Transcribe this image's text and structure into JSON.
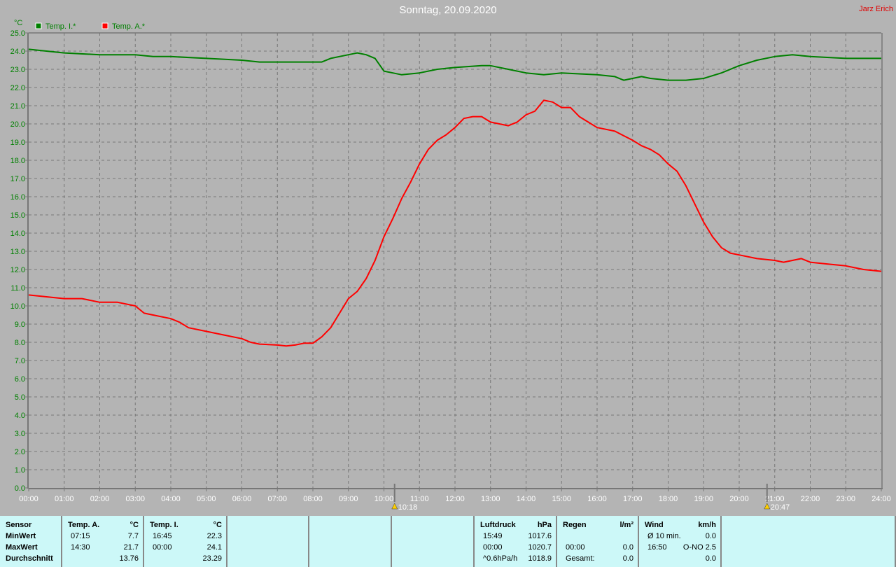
{
  "title": "Sonntag, 20.09.2020",
  "author": "Jarz Erich",
  "chart_data": {
    "type": "line",
    "ylabel": "°C",
    "ylim": [
      0,
      25
    ],
    "xlim": [
      "00:00",
      "24:00"
    ],
    "grid": true,
    "legend": "top-left",
    "x_ticks": [
      "00:00",
      "01:00",
      "02:00",
      "03:00",
      "04:00",
      "05:00",
      "06:00",
      "07:00",
      "08:00",
      "09:00",
      "10:00",
      "11:00",
      "12:00",
      "13:00",
      "14:00",
      "15:00",
      "16:00",
      "17:00",
      "18:00",
      "19:00",
      "20:00",
      "21:00",
      "22:00",
      "23:00",
      "24:00"
    ],
    "y_ticks": [
      "0.0",
      "1.0",
      "2.0",
      "3.0",
      "4.0",
      "5.0",
      "6.0",
      "7.0",
      "8.0",
      "9.0",
      "10.0",
      "11.0",
      "12.0",
      "13.0",
      "14.0",
      "15.0",
      "16.0",
      "17.0",
      "18.0",
      "19.0",
      "20.0",
      "21.0",
      "22.0",
      "23.0",
      "24.0",
      "25.0"
    ],
    "markers": [
      {
        "label": "10:18",
        "icon": "sunrise-icon",
        "time": "10:18"
      },
      {
        "label": "20:47",
        "icon": "sunset-icon",
        "time": "20:47"
      }
    ],
    "series": [
      {
        "name": "Temp. I.*",
        "color": "#008000",
        "points": [
          [
            "00:00",
            24.1
          ],
          [
            "00:30",
            24.0
          ],
          [
            "01:00",
            23.9
          ],
          [
            "02:00",
            23.8
          ],
          [
            "03:00",
            23.8
          ],
          [
            "03:30",
            23.7
          ],
          [
            "04:00",
            23.7
          ],
          [
            "05:00",
            23.6
          ],
          [
            "06:00",
            23.5
          ],
          [
            "06:30",
            23.4
          ],
          [
            "07:00",
            23.4
          ],
          [
            "08:15",
            23.4
          ],
          [
            "08:30",
            23.6
          ],
          [
            "09:00",
            23.8
          ],
          [
            "09:15",
            23.9
          ],
          [
            "09:30",
            23.8
          ],
          [
            "09:45",
            23.6
          ],
          [
            "10:00",
            22.9
          ],
          [
            "10:15",
            22.8
          ],
          [
            "10:30",
            22.7
          ],
          [
            "11:00",
            22.8
          ],
          [
            "11:30",
            23.0
          ],
          [
            "12:00",
            23.1
          ],
          [
            "12:45",
            23.2
          ],
          [
            "13:00",
            23.2
          ],
          [
            "13:30",
            23.0
          ],
          [
            "14:00",
            22.8
          ],
          [
            "14:30",
            22.7
          ],
          [
            "15:00",
            22.8
          ],
          [
            "16:00",
            22.7
          ],
          [
            "16:30",
            22.6
          ],
          [
            "16:45",
            22.4
          ],
          [
            "17:00",
            22.5
          ],
          [
            "17:15",
            22.6
          ],
          [
            "17:30",
            22.5
          ],
          [
            "18:00",
            22.4
          ],
          [
            "18:30",
            22.4
          ],
          [
            "19:00",
            22.5
          ],
          [
            "19:30",
            22.8
          ],
          [
            "20:00",
            23.2
          ],
          [
            "20:30",
            23.5
          ],
          [
            "21:00",
            23.7
          ],
          [
            "21:30",
            23.8
          ],
          [
            "22:00",
            23.7
          ],
          [
            "23:00",
            23.6
          ],
          [
            "24:00",
            23.6
          ]
        ]
      },
      {
        "name": "Temp. A.*",
        "color": "#ff0000",
        "points": [
          [
            "00:00",
            10.6
          ],
          [
            "00:30",
            10.5
          ],
          [
            "01:00",
            10.4
          ],
          [
            "01:30",
            10.4
          ],
          [
            "02:00",
            10.2
          ],
          [
            "02:30",
            10.2
          ],
          [
            "03:00",
            10.0
          ],
          [
            "03:15",
            9.6
          ],
          [
            "03:30",
            9.5
          ],
          [
            "04:00",
            9.3
          ],
          [
            "04:15",
            9.1
          ],
          [
            "04:30",
            8.8
          ],
          [
            "05:00",
            8.6
          ],
          [
            "05:30",
            8.4
          ],
          [
            "06:00",
            8.2
          ],
          [
            "06:15",
            8.0
          ],
          [
            "06:30",
            7.9
          ],
          [
            "07:00",
            7.85
          ],
          [
            "07:15",
            7.8
          ],
          [
            "07:30",
            7.85
          ],
          [
            "07:45",
            7.95
          ],
          [
            "08:00",
            7.95
          ],
          [
            "08:15",
            8.3
          ],
          [
            "08:30",
            8.8
          ],
          [
            "08:45",
            9.6
          ],
          [
            "09:00",
            10.4
          ],
          [
            "09:15",
            10.8
          ],
          [
            "09:30",
            11.5
          ],
          [
            "09:45",
            12.5
          ],
          [
            "10:00",
            13.8
          ],
          [
            "10:15",
            14.8
          ],
          [
            "10:30",
            15.9
          ],
          [
            "10:45",
            16.8
          ],
          [
            "11:00",
            17.8
          ],
          [
            "11:15",
            18.6
          ],
          [
            "11:30",
            19.1
          ],
          [
            "11:45",
            19.4
          ],
          [
            "12:00",
            19.8
          ],
          [
            "12:15",
            20.3
          ],
          [
            "12:30",
            20.4
          ],
          [
            "12:45",
            20.4
          ],
          [
            "13:00",
            20.1
          ],
          [
            "13:15",
            20.0
          ],
          [
            "13:30",
            19.9
          ],
          [
            "13:45",
            20.1
          ],
          [
            "14:00",
            20.5
          ],
          [
            "14:15",
            20.7
          ],
          [
            "14:30",
            21.3
          ],
          [
            "14:45",
            21.2
          ],
          [
            "15:00",
            20.9
          ],
          [
            "15:15",
            20.9
          ],
          [
            "15:30",
            20.4
          ],
          [
            "15:45",
            20.1
          ],
          [
            "16:00",
            19.8
          ],
          [
            "16:30",
            19.6
          ],
          [
            "17:00",
            19.1
          ],
          [
            "17:15",
            18.8
          ],
          [
            "17:30",
            18.6
          ],
          [
            "17:45",
            18.3
          ],
          [
            "18:00",
            17.8
          ],
          [
            "18:15",
            17.4
          ],
          [
            "18:30",
            16.6
          ],
          [
            "18:45",
            15.6
          ],
          [
            "19:00",
            14.6
          ],
          [
            "19:15",
            13.8
          ],
          [
            "19:30",
            13.2
          ],
          [
            "19:45",
            12.9
          ],
          [
            "20:00",
            12.8
          ],
          [
            "20:30",
            12.6
          ],
          [
            "21:00",
            12.5
          ],
          [
            "21:15",
            12.4
          ],
          [
            "21:30",
            12.5
          ],
          [
            "21:45",
            12.6
          ],
          [
            "22:00",
            12.4
          ],
          [
            "22:30",
            12.3
          ],
          [
            "23:00",
            12.2
          ],
          [
            "23:30",
            12.0
          ],
          [
            "24:00",
            11.9
          ]
        ]
      }
    ]
  },
  "table": {
    "sensor": {
      "h": "Sensor",
      "rows": [
        "MinWert",
        "MaxWert",
        "Durchschnitt"
      ]
    },
    "tempA": {
      "h": "Temp. A.",
      "u": "°C",
      "t": [
        "07:15",
        "14:30",
        ""
      ],
      "v": [
        "7.7",
        "21.7",
        "13.76"
      ]
    },
    "tempI": {
      "h": "Temp. I.",
      "u": "°C",
      "t": [
        "16:45",
        "00:00",
        ""
      ],
      "v": [
        "22.3",
        "24.1",
        "23.29"
      ]
    },
    "luft": {
      "h": "Luftdruck",
      "u": "hPa",
      "t": [
        "15:49",
        "00:00",
        "^0.6hPa/h"
      ],
      "v": [
        "1017.6",
        "1020.7",
        "1018.9"
      ]
    },
    "regen": {
      "h": "Regen",
      "u": "l/m²",
      "t": [
        "",
        "00:00",
        "Gesamt:"
      ],
      "v": [
        "",
        "0.0",
        "0.0"
      ]
    },
    "wind": {
      "h": "Wind",
      "u": "km/h",
      "t": [
        "Ø 10 min.",
        "16:50",
        ""
      ],
      "v": [
        "0.0",
        "O-NO 2.5",
        "0.0"
      ]
    }
  }
}
